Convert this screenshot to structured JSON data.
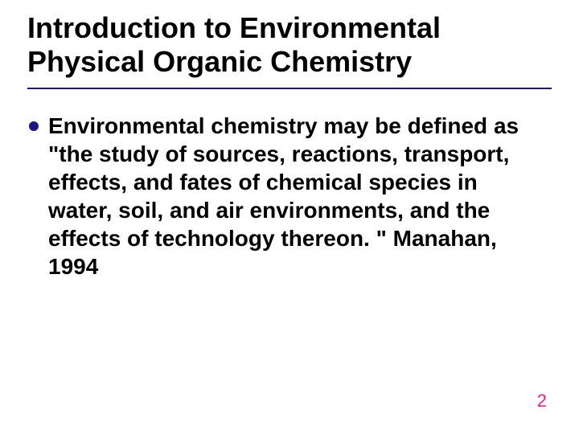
{
  "title": "Introduction to Environmental Physical Organic Chemistry",
  "title_color": "#000000",
  "title_fontsize": 36,
  "underline_color": "#201288",
  "bullets": [
    {
      "text": "Environmental chemistry may be defined as \"the study of sources, reactions, transport, effects, and fates of chemical species in water, soil, and air environments, and the effects of technology thereon. \"   Manahan, 1994",
      "bullet_color": "#201288"
    }
  ],
  "body_fontsize": 28,
  "body_color": "#000000",
  "page_number": "2",
  "page_number_color": "#f21c8c",
  "page_number_fontsize": 22,
  "background_color": "#ffffff"
}
